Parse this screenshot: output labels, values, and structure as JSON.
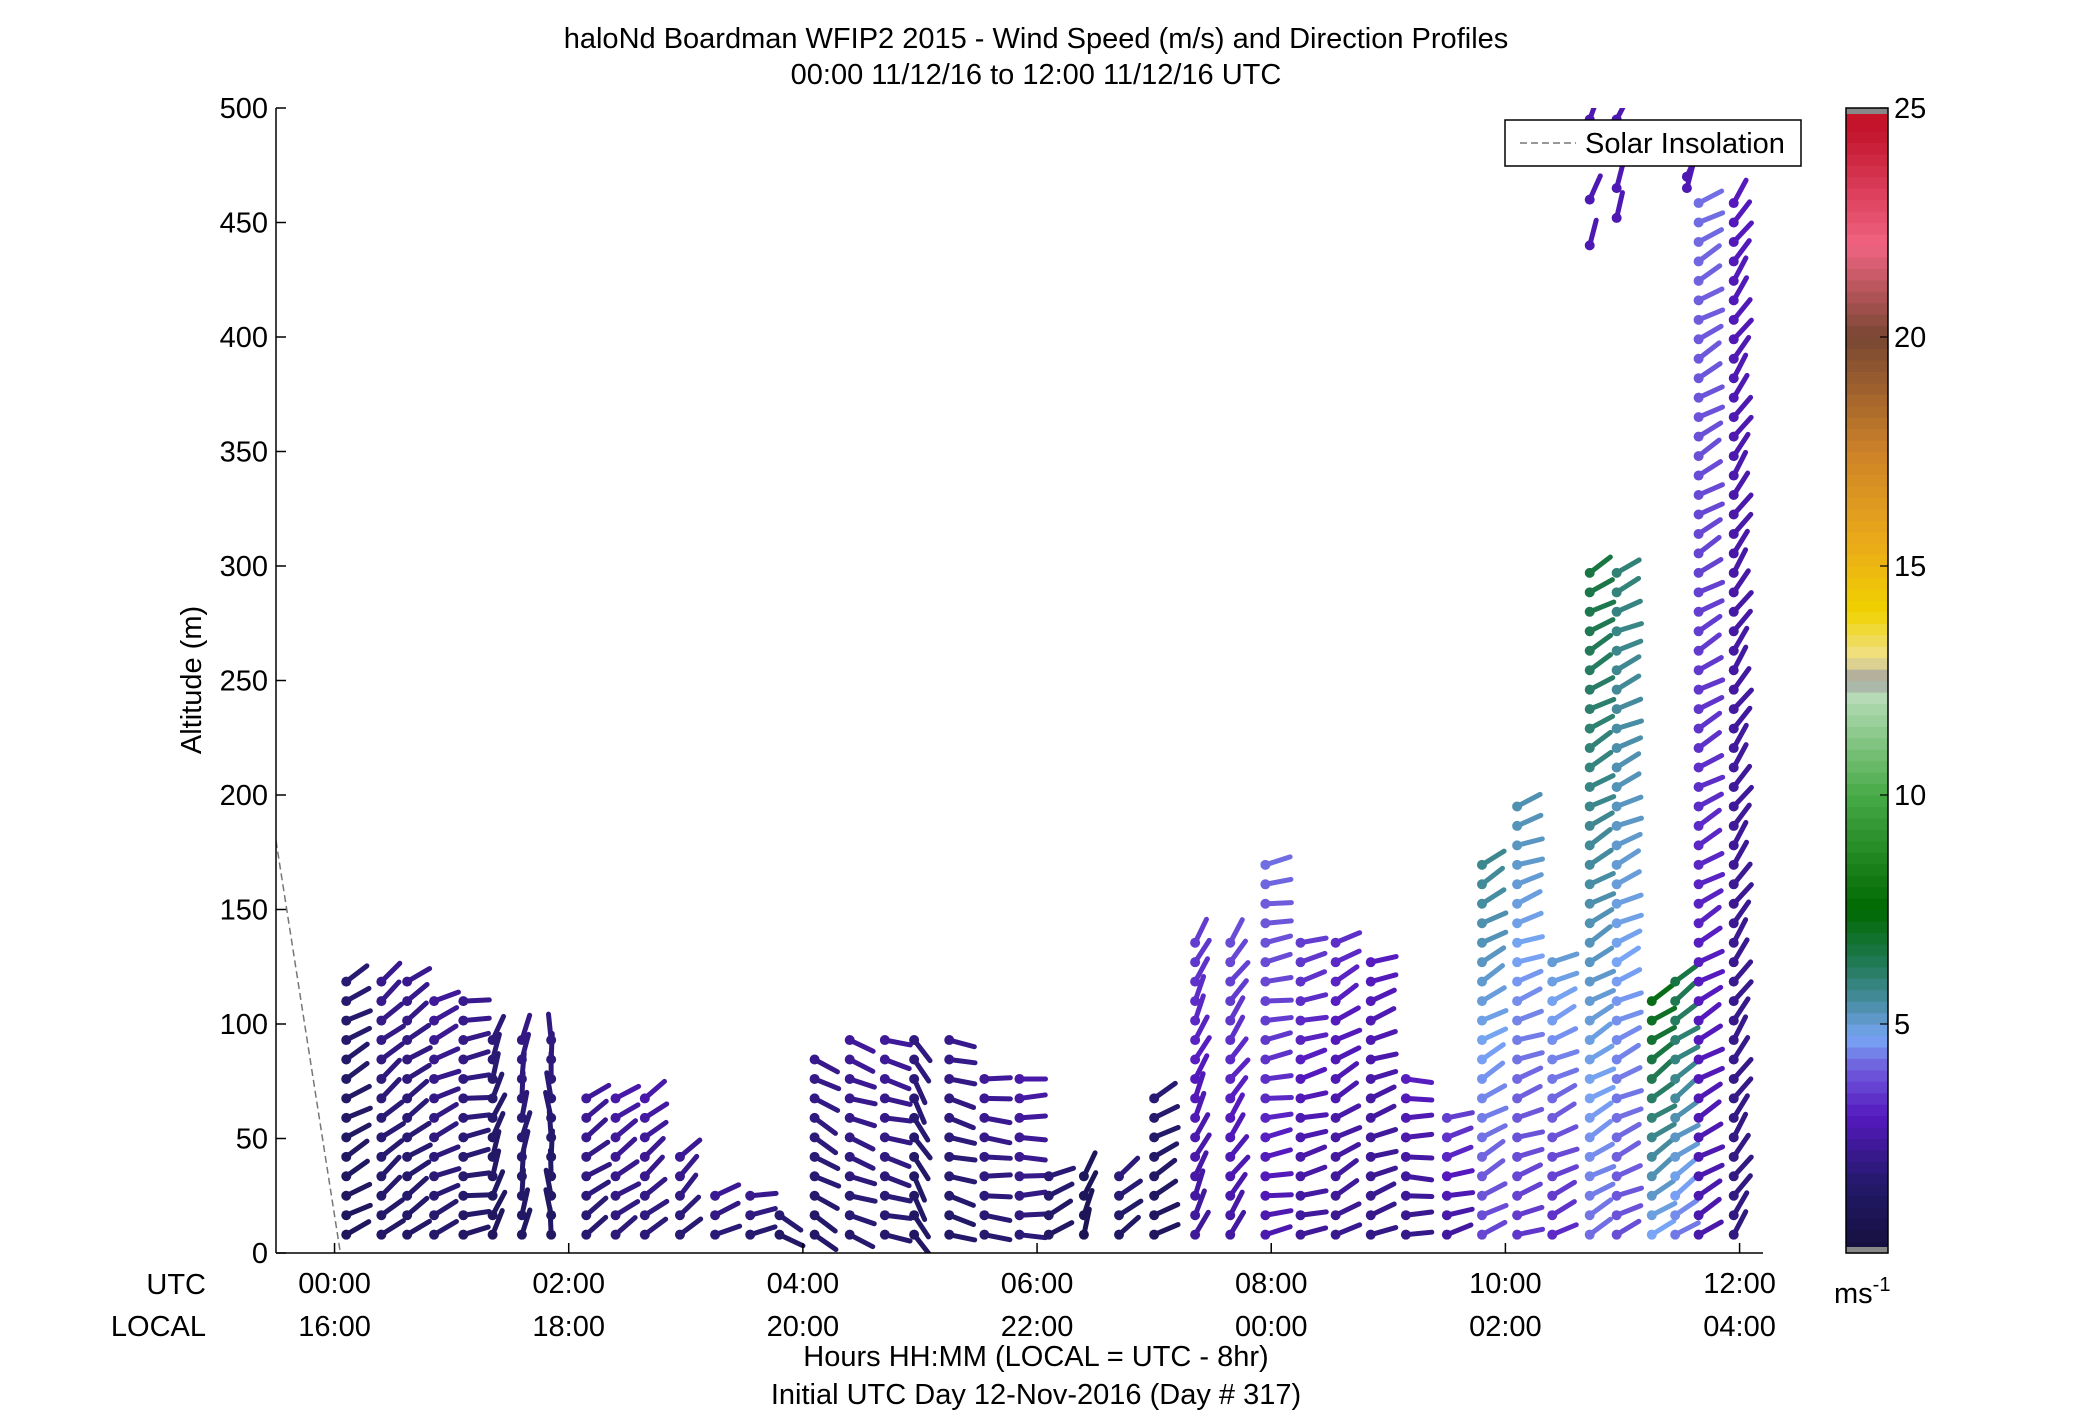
{
  "chart_data": {
    "type": "wind-barb-profile",
    "title": "haloNd Boardman WFIP2 2015 - Wind Speed (m/s) and Direction Profiles",
    "subtitle": "00:00 11/12/16 to 12:00 11/12/16  UTC",
    "ylabel": "Altitude (m)",
    "xlabel": "Hours HH:MM  (LOCAL = UTC - 8hr)",
    "xlabel2": "Initial UTC Day 12-Nov-2016 (Day # 317)",
    "row_label_utc": "UTC",
    "row_label_local": "LOCAL",
    "ylim": [
      0,
      500
    ],
    "xlim_hours": [
      -0.5,
      12.2
    ],
    "y_ticks": [
      "0",
      "50",
      "100",
      "150",
      "200",
      "250",
      "300",
      "350",
      "400",
      "450",
      "500"
    ],
    "x_ticks_utc": [
      "00:00",
      "02:00",
      "04:00",
      "06:00",
      "08:00",
      "10:00",
      "12:00"
    ],
    "x_ticks_local": [
      "16:00",
      "18:00",
      "20:00",
      "22:00",
      "00:00",
      "02:00",
      "04:00"
    ],
    "legend": {
      "entry": "Solar Insolation",
      "placement": "top-right",
      "style": "dashed gray"
    },
    "colorbar": {
      "ticks": [
        "5",
        "10",
        "15",
        "20",
        "25"
      ],
      "range": [
        0,
        25
      ],
      "unit_base": "ms",
      "unit_exp": "-1"
    },
    "solar_insolation": {
      "x": [
        -0.5,
        0.05
      ],
      "y": [
        180,
        0
      ]
    },
    "wind_profiles": [
      {
        "t": 0.1,
        "top": 122,
        "speed": 1.4,
        "dir": 240
      },
      {
        "t": 0.4,
        "top": 122,
        "speed": 1.8,
        "dir": 230
      },
      {
        "t": 0.62,
        "top": 122,
        "speed": 1.8,
        "dir": 235
      },
      {
        "t": 0.85,
        "top": 118,
        "speed": 2.0,
        "dir": 245
      },
      {
        "t": 1.1,
        "top": 112,
        "speed": 1.8,
        "dir": 260
      },
      {
        "t": 1.35,
        "top": 98,
        "speed": 1.5,
        "dir": 200
      },
      {
        "t": 1.6,
        "top": 98,
        "speed": 1.7,
        "dir": 190
      },
      {
        "t": 1.85,
        "top": 98,
        "speed": 1.6,
        "dir": 175
      },
      {
        "t": 2.15,
        "top": 72,
        "speed": 2.0,
        "dir": 235
      },
      {
        "t": 2.4,
        "top": 70,
        "speed": 2.2,
        "dir": 235
      },
      {
        "t": 2.65,
        "top": 70,
        "speed": 2.2,
        "dir": 230
      },
      {
        "t": 2.95,
        "top": 50,
        "speed": 2.0,
        "dir": 225
      },
      {
        "t": 3.25,
        "top": 30,
        "speed": 2.0,
        "dir": 250
      },
      {
        "t": 3.55,
        "top": 25,
        "speed": 1.8,
        "dir": 260
      },
      {
        "t": 3.8,
        "top": 22,
        "speed": 1.5,
        "dir": 300
      },
      {
        "t": 4.1,
        "top": 90,
        "speed": 1.8,
        "dir": 300
      },
      {
        "t": 4.4,
        "top": 95,
        "speed": 2.0,
        "dir": 290
      },
      {
        "t": 4.7,
        "top": 95,
        "speed": 2.0,
        "dir": 285
      },
      {
        "t": 4.95,
        "top": 98,
        "speed": 1.6,
        "dir": 330
      },
      {
        "t": 5.25,
        "top": 95,
        "speed": 1.8,
        "dir": 285
      },
      {
        "t": 5.55,
        "top": 80,
        "speed": 2.0,
        "dir": 275
      },
      {
        "t": 5.85,
        "top": 78,
        "speed": 2.2,
        "dir": 270
      },
      {
        "t": 6.1,
        "top": 40,
        "speed": 1.5,
        "dir": 245
      },
      {
        "t": 6.4,
        "top": 40,
        "speed": 1.0,
        "dir": 200
      },
      {
        "t": 6.7,
        "top": 40,
        "speed": 1.6,
        "dir": 230
      },
      {
        "t": 7.0,
        "top": 70,
        "speed": 1.4,
        "dir": 240
      },
      {
        "t": 7.35,
        "top": 140,
        "speed": 3.0,
        "dir": 205
      },
      {
        "t": 7.65,
        "top": 140,
        "speed": 3.2,
        "dir": 215
      },
      {
        "t": 7.95,
        "top": 172,
        "speed": 3.5,
        "dir": 260
      },
      {
        "t": 8.25,
        "top": 140,
        "speed": 3.0,
        "dir": 255
      },
      {
        "t": 8.55,
        "top": 140,
        "speed": 2.8,
        "dir": 240
      },
      {
        "t": 8.85,
        "top": 135,
        "speed": 2.6,
        "dir": 250
      },
      {
        "t": 9.15,
        "top": 80,
        "speed": 2.6,
        "dir": 270
      },
      {
        "t": 9.5,
        "top": 60,
        "speed": 3.0,
        "dir": 255
      },
      {
        "t": 9.8,
        "top": 175,
        "speed": 4.8,
        "dir": 240
      },
      {
        "t": 10.1,
        "top": 200,
        "speed": 4.5,
        "dir": 250
      },
      {
        "t": 10.4,
        "top": 130,
        "speed": 4.2,
        "dir": 245
      },
      {
        "t": 10.72,
        "top": 300,
        "speed": 5.5,
        "dir": 240
      },
      {
        "t": 10.95,
        "top": 300,
        "speed": 5.0,
        "dir": 245
      },
      {
        "t": 11.25,
        "top": 110,
        "speed": 6.0,
        "dir": 235
      },
      {
        "t": 11.45,
        "top": 120,
        "speed": 5.5,
        "dir": 235
      },
      {
        "t": 11.65,
        "top": 460,
        "speed": 3.5,
        "dir": 240
      },
      {
        "t": 11.95,
        "top": 460,
        "speed": 2.5,
        "dir": 215
      }
    ],
    "upper_fragments": [
      {
        "t": 10.72,
        "alts": [
          495,
          480,
          460,
          440
        ]
      },
      {
        "t": 10.95,
        "alts": [
          495,
          480,
          465,
          452
        ]
      },
      {
        "t": 11.55,
        "alts": [
          470,
          465
        ]
      }
    ]
  }
}
